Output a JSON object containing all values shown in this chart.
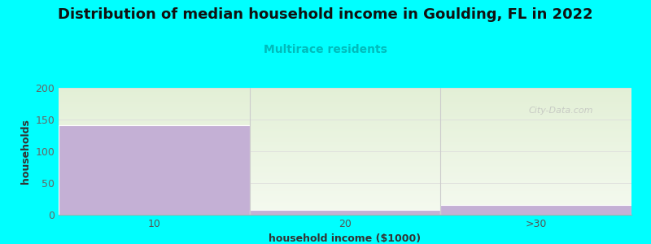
{
  "title": "Distribution of median household income in Goulding, FL in 2022",
  "subtitle": "Multirace residents",
  "xlabel": "household income ($1000)",
  "ylabel": "households",
  "background_color": "#00FFFF",
  "bar_values": [
    141,
    8,
    15
  ],
  "bar_color": "#C4B0D5",
  "bar_edges": [
    0,
    1,
    2,
    3
  ],
  "xtick_positions": [
    0.5,
    1.5,
    2.5
  ],
  "xtick_labels": [
    "10",
    "20",
    ">30"
  ],
  "ylim": [
    0,
    200
  ],
  "yticks": [
    0,
    50,
    100,
    150,
    200
  ],
  "title_fontsize": 13,
  "subtitle_fontsize": 10,
  "subtitle_color": "#00BBBB",
  "axis_label_fontsize": 9,
  "tick_fontsize": 9,
  "watermark": "City-Data.com",
  "plot_area_bg_top": "#E8F0DC",
  "plot_area_bg_bottom": "#F5FAF0",
  "grid_color": "#DDDDDD",
  "separator_color": "#CCCCCC"
}
